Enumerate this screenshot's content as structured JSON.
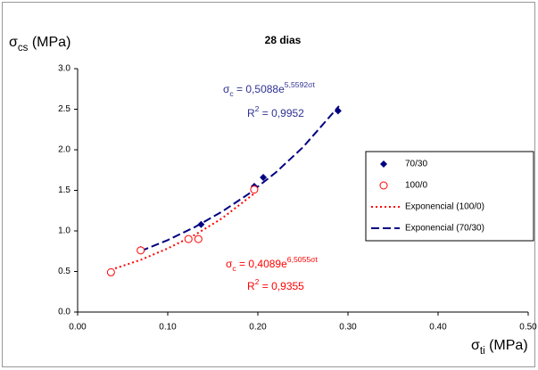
{
  "chart_data": {
    "type": "scatter",
    "title": "28 dias",
    "y_label": {
      "base": "σ",
      "sub": "cs",
      "rest": " (MPa)"
    },
    "x_label": {
      "base": "σ",
      "sub": "ti",
      "rest": " (MPa)"
    },
    "xlim": [
      0,
      0.5
    ],
    "ylim": [
      0,
      3
    ],
    "xticks": [
      {
        "value": 0,
        "label": "0.00"
      },
      {
        "value": 0.1,
        "label": "0.10"
      },
      {
        "value": 0.2,
        "label": "0.20"
      },
      {
        "value": 0.3,
        "label": "0.30"
      },
      {
        "value": 0.4,
        "label": "0.40"
      },
      {
        "value": 0.5,
        "label": "0.50"
      }
    ],
    "yticks": [
      {
        "value": 0,
        "label": "0.0"
      },
      {
        "value": 0.5,
        "label": "0.5"
      },
      {
        "value": 1,
        "label": "1.0"
      },
      {
        "value": 1.5,
        "label": "1.5"
      },
      {
        "value": 2,
        "label": "2.0"
      },
      {
        "value": 2.5,
        "label": "2.5"
      },
      {
        "value": 3,
        "label": "3.0"
      }
    ],
    "grid": false,
    "legend": "right",
    "series": [
      {
        "name": "70/30",
        "color": "#000080",
        "marker": "diamond",
        "x": [
          0.07,
          0.137,
          0.196,
          0.206,
          0.289
        ],
        "values": [
          0.77,
          1.08,
          1.55,
          1.66,
          2.48
        ]
      },
      {
        "name": "100/0",
        "color": "#ff0000",
        "marker": "circle",
        "x": [
          0.037,
          0.07,
          0.123,
          0.134,
          0.196
        ],
        "values": [
          0.49,
          0.76,
          0.9,
          0.9,
          1.51
        ]
      },
      {
        "name": "Exponencial (100/0)",
        "color": "#ff0000",
        "line": "dotted",
        "x": [
          0.037,
          0.07,
          0.1,
          0.13,
          0.16,
          0.196
        ],
        "values": [
          0.521,
          0.643,
          0.784,
          0.95,
          1.153,
          1.461
        ]
      },
      {
        "name": "Exponencial (70/30)",
        "color": "#000080",
        "line": "dashed",
        "x": [
          0.07,
          0.1,
          0.13,
          0.16,
          0.19,
          0.22,
          0.25,
          0.29
        ],
        "values": [
          0.752,
          0.887,
          1.047,
          1.236,
          1.458,
          1.721,
          2.031,
          2.538
        ]
      }
    ],
    "annotations": [
      {
        "color": "#2e3192",
        "eq": {
          "base": "σ",
          "sub": "c",
          "mid": " = 0,5088e",
          "sup": "5,5592σt"
        },
        "r2": {
          "base": "R",
          "sup": "2",
          "rest": " = 0,9952"
        }
      },
      {
        "color": "#ff0000",
        "eq": {
          "base": "σ",
          "sub": "c",
          "mid": " = 0,4089e",
          "sup": "6,5055σt"
        },
        "r2": {
          "base": "R",
          "sup": "2",
          "rest": " = 0,9355"
        }
      }
    ]
  }
}
